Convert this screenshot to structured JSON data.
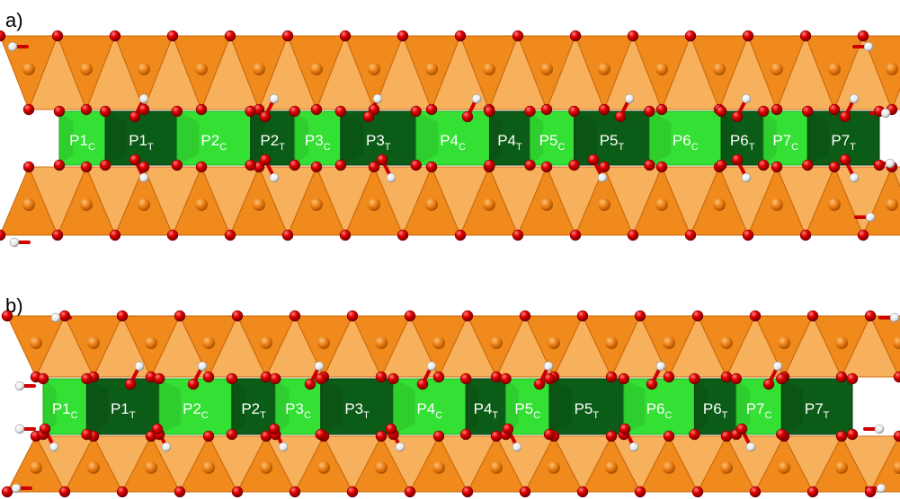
{
  "panels": [
    {
      "label": "a)",
      "sites": [
        {
          "name": "P1",
          "sub": "C",
          "kind": "cis"
        },
        {
          "name": "P1",
          "sub": "T",
          "kind": "trans"
        },
        {
          "name": "P2",
          "sub": "C",
          "kind": "cis"
        },
        {
          "name": "P2",
          "sub": "T",
          "kind": "trans"
        },
        {
          "name": "P3",
          "sub": "C",
          "kind": "cis"
        },
        {
          "name": "P3",
          "sub": "T",
          "kind": "trans"
        },
        {
          "name": "P4",
          "sub": "C",
          "kind": "cis"
        },
        {
          "name": "P4",
          "sub": "T",
          "kind": "trans"
        },
        {
          "name": "P5",
          "sub": "C",
          "kind": "cis"
        },
        {
          "name": "P5",
          "sub": "T",
          "kind": "trans"
        },
        {
          "name": "P6",
          "sub": "C",
          "kind": "cis"
        },
        {
          "name": "P6",
          "sub": "T",
          "kind": "trans"
        },
        {
          "name": "P7",
          "sub": "C",
          "kind": "cis"
        },
        {
          "name": "P7",
          "sub": "T",
          "kind": "trans"
        }
      ]
    },
    {
      "label": "b)",
      "sites": [
        {
          "name": "P1",
          "sub": "C",
          "kind": "cis"
        },
        {
          "name": "P1",
          "sub": "T",
          "kind": "trans"
        },
        {
          "name": "P2",
          "sub": "C",
          "kind": "cis"
        },
        {
          "name": "P2",
          "sub": "T",
          "kind": "trans"
        },
        {
          "name": "P3",
          "sub": "C",
          "kind": "cis"
        },
        {
          "name": "P3",
          "sub": "T",
          "kind": "trans"
        },
        {
          "name": "P4",
          "sub": "C",
          "kind": "cis"
        },
        {
          "name": "P4",
          "sub": "T",
          "kind": "trans"
        },
        {
          "name": "P5",
          "sub": "C",
          "kind": "cis"
        },
        {
          "name": "P5",
          "sub": "T",
          "kind": "trans"
        },
        {
          "name": "P6",
          "sub": "C",
          "kind": "cis"
        },
        {
          "name": "P6",
          "sub": "T",
          "kind": "trans"
        },
        {
          "name": "P7",
          "sub": "C",
          "kind": "cis"
        },
        {
          "name": "P7",
          "sub": "T",
          "kind": "trans"
        }
      ]
    }
  ],
  "colors": {
    "tetrahedron": "#f08a1c",
    "tetrahedron_dark": "#c8650a",
    "tetrahedron_light": "#f7a84a",
    "cis_octahedron": "#33e033",
    "trans_octahedron": "#0b5c16",
    "oxygen": "#e00000",
    "hydrogen": "#f4f4f4"
  }
}
